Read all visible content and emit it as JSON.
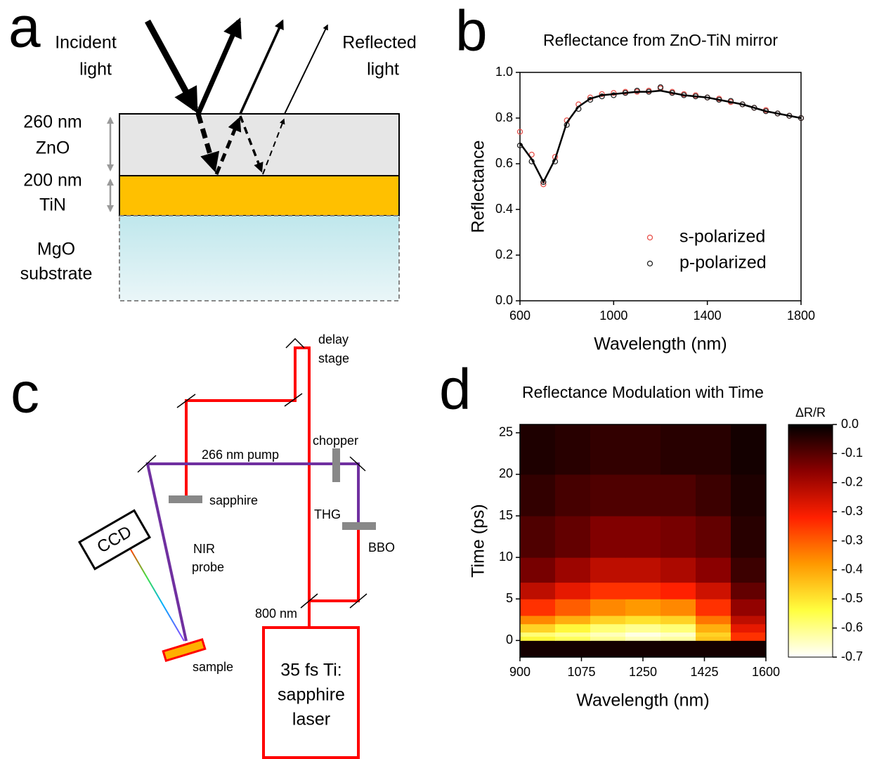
{
  "panel_a": {
    "letter": "a",
    "incident": [
      "Incident",
      "light"
    ],
    "reflected": [
      "Reflected",
      "light"
    ],
    "zno": [
      "260 nm",
      "ZnO"
    ],
    "tin": [
      "200 nm",
      "TiN"
    ],
    "mgo": [
      "MgO",
      "substrate"
    ]
  },
  "panel_b": {
    "letter": "b"
  },
  "panel_c": {
    "letter": "c",
    "delay": [
      "delay",
      "stage"
    ],
    "chopper": "chopper",
    "pump": "266 nm pump",
    "sapphire": "sapphire",
    "thg": "THG",
    "bbo": "BBO",
    "probe": [
      "NIR",
      "probe"
    ],
    "ccd": "CCD",
    "wavelength": "800 nm",
    "sample": "sample",
    "laser": [
      "35 fs Ti:",
      "sapphire",
      "laser"
    ]
  },
  "panel_d": {
    "letter": "d"
  },
  "chart_data": [
    {
      "type": "scatter",
      "title": "Reflectance from ZnO-TiN mirror",
      "x_label": "Wavelength (nm)",
      "y_label": "Reflectance",
      "x": [
        600,
        650,
        700,
        750,
        800,
        850,
        900,
        950,
        1000,
        1050,
        1100,
        1150,
        1200,
        1250,
        1300,
        1350,
        1400,
        1450,
        1500,
        1550,
        1600,
        1650,
        1700,
        1750,
        1800
      ],
      "series": [
        {
          "name": "s-polarized",
          "color": "#e8504a",
          "marker": "circle",
          "values": [
            0.74,
            0.64,
            0.51,
            0.63,
            0.79,
            0.86,
            0.89,
            0.905,
            0.91,
            0.915,
            0.915,
            0.92,
            0.93,
            0.915,
            0.905,
            0.9,
            0.89,
            0.885,
            0.87,
            0.86,
            0.845,
            0.835,
            0.82,
            0.81,
            0.8
          ]
        },
        {
          "name": "p-polarized",
          "color": "#222222",
          "marker": "circle",
          "values": [
            0.68,
            0.61,
            0.52,
            0.61,
            0.77,
            0.84,
            0.88,
            0.895,
            0.9,
            0.91,
            0.92,
            0.915,
            0.935,
            0.91,
            0.9,
            0.895,
            0.89,
            0.88,
            0.875,
            0.86,
            0.845,
            0.83,
            0.82,
            0.81,
            0.8
          ]
        },
        {
          "color": "#000000",
          "marker": "line",
          "values": [
            0.69,
            0.62,
            0.52,
            0.62,
            0.78,
            0.85,
            0.885,
            0.9,
            0.905,
            0.91,
            0.915,
            0.915,
            0.92,
            0.91,
            0.9,
            0.895,
            0.89,
            0.88,
            0.87,
            0.86,
            0.845,
            0.83,
            0.82,
            0.81,
            0.8
          ]
        }
      ],
      "xlim": [
        600,
        1800
      ],
      "xticks": [
        600,
        1000,
        1400,
        1800
      ],
      "ylim": [
        0,
        1
      ],
      "yticks": [
        {
          "value": 0,
          "label": "0.0"
        },
        0.2,
        0.4,
        0.6,
        0.8,
        {
          "value": 1,
          "label": "1.0"
        }
      ],
      "legend": "lower right"
    },
    {
      "type": "heatmap",
      "title": "Reflectance Modulation with Time",
      "x_label": "Wavelength (nm)",
      "y_label": "Time (ps)",
      "colorbar_label": "ΔR/R",
      "xbins": [
        900,
        1000,
        1100,
        1200,
        1300,
        1400,
        1500,
        1600
      ],
      "ybins": [
        -2,
        0,
        0.5,
        1,
        2,
        3,
        5,
        7,
        10,
        15,
        20,
        26
      ],
      "values": [
        [
          -0.02,
          -0.02,
          -0.02,
          -0.02,
          -0.02,
          -0.02,
          -0.02
        ],
        [
          -0.55,
          -0.58,
          -0.62,
          -0.65,
          -0.63,
          -0.48,
          -0.3
        ],
        [
          -0.6,
          -0.62,
          -0.65,
          -0.68,
          -0.66,
          -0.5,
          -0.3
        ],
        [
          -0.5,
          -0.55,
          -0.6,
          -0.62,
          -0.6,
          -0.45,
          -0.25
        ],
        [
          -0.4,
          -0.45,
          -0.5,
          -0.52,
          -0.5,
          -0.38,
          -0.2
        ],
        [
          -0.3,
          -0.35,
          -0.4,
          -0.42,
          -0.4,
          -0.3,
          -0.15
        ],
        [
          -0.2,
          -0.25,
          -0.3,
          -0.3,
          -0.28,
          -0.22,
          -0.1
        ],
        [
          -0.12,
          -0.16,
          -0.2,
          -0.2,
          -0.18,
          -0.14,
          -0.06
        ],
        [
          -0.08,
          -0.1,
          -0.13,
          -0.13,
          -0.12,
          -0.1,
          -0.04
        ],
        [
          -0.05,
          -0.07,
          -0.08,
          -0.08,
          -0.08,
          -0.06,
          -0.03
        ],
        [
          -0.03,
          -0.04,
          -0.05,
          -0.05,
          -0.04,
          -0.04,
          -0.02
        ]
      ],
      "colormap": [
        "#000000",
        "#8b0000",
        "#ff2000",
        "#ff9900",
        "#ffff40",
        "#ffffff"
      ],
      "clim": [
        -0.7,
        0
      ],
      "cticks": [
        {
          "value": 0,
          "label": "0.0"
        },
        {
          "value": -0.0875,
          "label": "-0.1"
        },
        {
          "value": -0.175,
          "label": "-0.2"
        },
        {
          "value": -0.2625,
          "label": "-0.3"
        },
        {
          "value": -0.35,
          "label": "-0.3"
        },
        {
          "value": -0.4375,
          "label": "-0.4"
        },
        {
          "value": -0.525,
          "label": "-0.5"
        },
        {
          "value": -0.6125,
          "label": "-0.6"
        },
        -0.7
      ],
      "xlim": [
        900,
        1600
      ],
      "xticks": [
        900,
        1075,
        1250,
        1425,
        1600
      ],
      "ylim": [
        -2,
        26
      ],
      "yticks": [
        0,
        5,
        10,
        15,
        20,
        25
      ]
    }
  ]
}
